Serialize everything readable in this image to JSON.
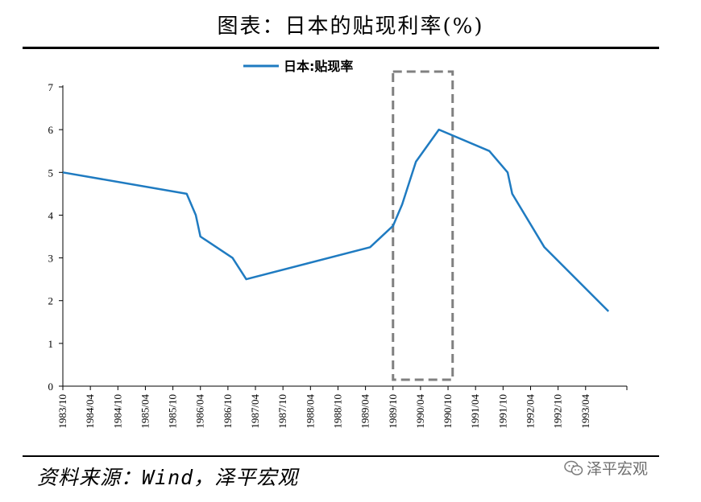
{
  "header": {
    "title": "图表：日本的贴现利率(%)"
  },
  "footer": {
    "source": "资料来源：Wind，泽平宏观",
    "watermark": "泽平宏观",
    "watermark_icon": "wechat-icon"
  },
  "colors": {
    "series": "#1f7bc1",
    "highlight_box": "#808080",
    "axis": "#000000"
  },
  "chart_data": {
    "type": "line",
    "title": "图表：日本的贴现利率(%)",
    "xlabel": "",
    "ylabel": "",
    "ylim": [
      0,
      7
    ],
    "yticks": [
      0,
      1,
      2,
      3,
      4,
      5,
      6,
      7
    ],
    "xlim": [
      "1983/10",
      "1994/01"
    ],
    "x_tick_labels": [
      "1983/10",
      "1984/04",
      "1984/10",
      "1985/04",
      "1985/10",
      "1986/04",
      "1986/10",
      "1987/04",
      "1987/10",
      "1988/04",
      "1988/10",
      "1989/04",
      "1989/10",
      "1990/04",
      "1990/10",
      "1991/04",
      "1991/10",
      "1992/04",
      "1992/10",
      "1993/04"
    ],
    "legend": "top-center",
    "grid": false,
    "series": [
      {
        "name": "日本:贴现率",
        "points": [
          {
            "x": "1983/10",
            "y": 5.0
          },
          {
            "x": "1986/01",
            "y": 4.5
          },
          {
            "x": "1986/03",
            "y": 4.0
          },
          {
            "x": "1986/04",
            "y": 3.5
          },
          {
            "x": "1986/11",
            "y": 3.0
          },
          {
            "x": "1987/02",
            "y": 2.5
          },
          {
            "x": "1989/05",
            "y": 3.25
          },
          {
            "x": "1989/10",
            "y": 3.75
          },
          {
            "x": "1989/12",
            "y": 4.25
          },
          {
            "x": "1990/03",
            "y": 5.25
          },
          {
            "x": "1990/08",
            "y": 6.0
          },
          {
            "x": "1991/07",
            "y": 5.5
          },
          {
            "x": "1991/11",
            "y": 5.0
          },
          {
            "x": "1991/12",
            "y": 4.5
          },
          {
            "x": "1992/07",
            "y": 3.25
          },
          {
            "x": "1993/09",
            "y": 1.75
          }
        ]
      }
    ],
    "annotations": [
      {
        "type": "dashed-box",
        "x_from": "1989/10",
        "x_to": "1990/11"
      }
    ]
  }
}
